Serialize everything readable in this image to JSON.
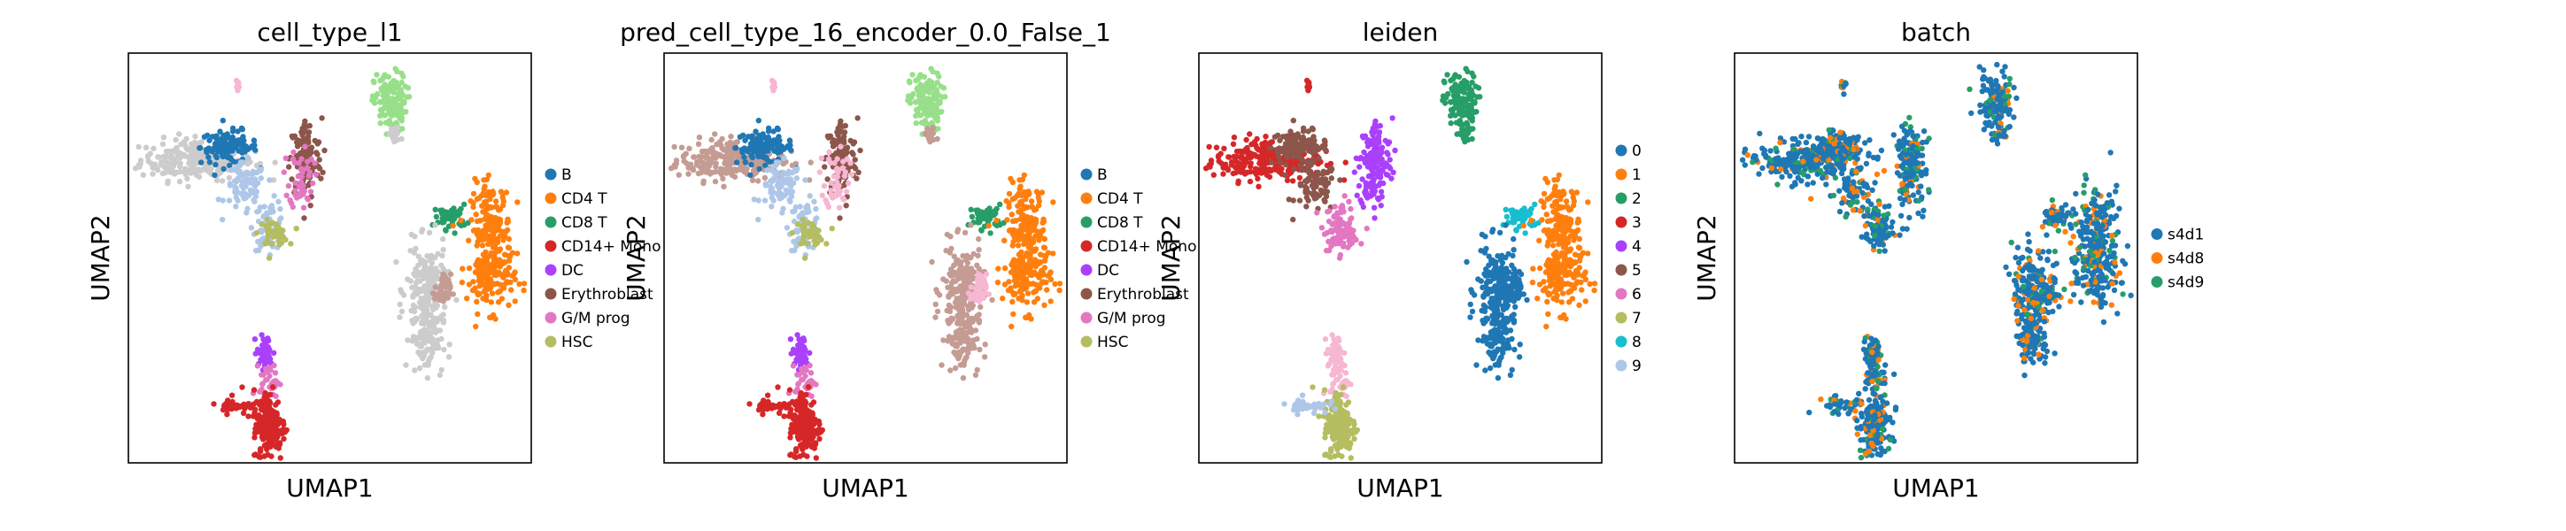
{
  "chart_data": [
    {
      "type": "scatter",
      "title": "cell_type_l1",
      "xlabel": "UMAP1",
      "ylabel": "UMAP2",
      "grid": false,
      "legend_placement": "right",
      "color_key": "cell_type_l1",
      "legend": [
        {
          "label": "B",
          "color": "#1f77b4"
        },
        {
          "label": "CD4 T",
          "color": "#ff7f0e"
        },
        {
          "label": "CD8 T",
          "color": "#279e68"
        },
        {
          "label": "CD14+ Mono",
          "color": "#d62728"
        },
        {
          "label": "DC",
          "color": "#aa40fc"
        },
        {
          "label": "Erythroblast",
          "color": "#8c564b"
        },
        {
          "label": "G/M prog",
          "color": "#e377c2"
        },
        {
          "label": "HSC",
          "color": "#b5bd61"
        }
      ]
    },
    {
      "type": "scatter",
      "title": "pred_cell_type_16_encoder_0.0_False_1",
      "xlabel": "UMAP1",
      "ylabel": "UMAP2",
      "grid": false,
      "legend_placement": "right",
      "color_key": "pred",
      "legend": [
        {
          "label": "B",
          "color": "#1f77b4"
        },
        {
          "label": "CD4 T",
          "color": "#ff7f0e"
        },
        {
          "label": "CD8 T",
          "color": "#279e68"
        },
        {
          "label": "CD14+ Mono",
          "color": "#d62728"
        },
        {
          "label": "DC",
          "color": "#aa40fc"
        },
        {
          "label": "Erythroblast",
          "color": "#8c564b"
        },
        {
          "label": "G/M prog",
          "color": "#e377c2"
        },
        {
          "label": "HSC",
          "color": "#b5bd61"
        }
      ]
    },
    {
      "type": "scatter",
      "title": "leiden",
      "xlabel": "UMAP1",
      "ylabel": "UMAP2",
      "grid": false,
      "legend_placement": "right",
      "color_key": "leiden",
      "legend": [
        {
          "label": "0",
          "color": "#1f77b4"
        },
        {
          "label": "1",
          "color": "#ff7f0e"
        },
        {
          "label": "2",
          "color": "#279e68"
        },
        {
          "label": "3",
          "color": "#d62728"
        },
        {
          "label": "4",
          "color": "#aa40fc"
        },
        {
          "label": "5",
          "color": "#8c564b"
        },
        {
          "label": "6",
          "color": "#e377c2"
        },
        {
          "label": "7",
          "color": "#b5bd61"
        },
        {
          "label": "8",
          "color": "#17becf"
        },
        {
          "label": "9",
          "color": "#aec7e8"
        }
      ]
    },
    {
      "type": "scatter",
      "title": "batch",
      "xlabel": "UMAP1",
      "ylabel": "UMAP2",
      "grid": false,
      "legend_placement": "right",
      "color_key": "batch",
      "legend": [
        {
          "label": "s4d1",
          "color": "#1f77b4"
        },
        {
          "label": "s4d8",
          "color": "#ff7f0e"
        },
        {
          "label": "s4d9",
          "color": "#279e68"
        }
      ]
    }
  ],
  "colors": {
    "unlabeled": "#cccccc",
    "light_green": "#98df8a",
    "salmon": "#c49c94",
    "pink": "#f7b6d2"
  }
}
